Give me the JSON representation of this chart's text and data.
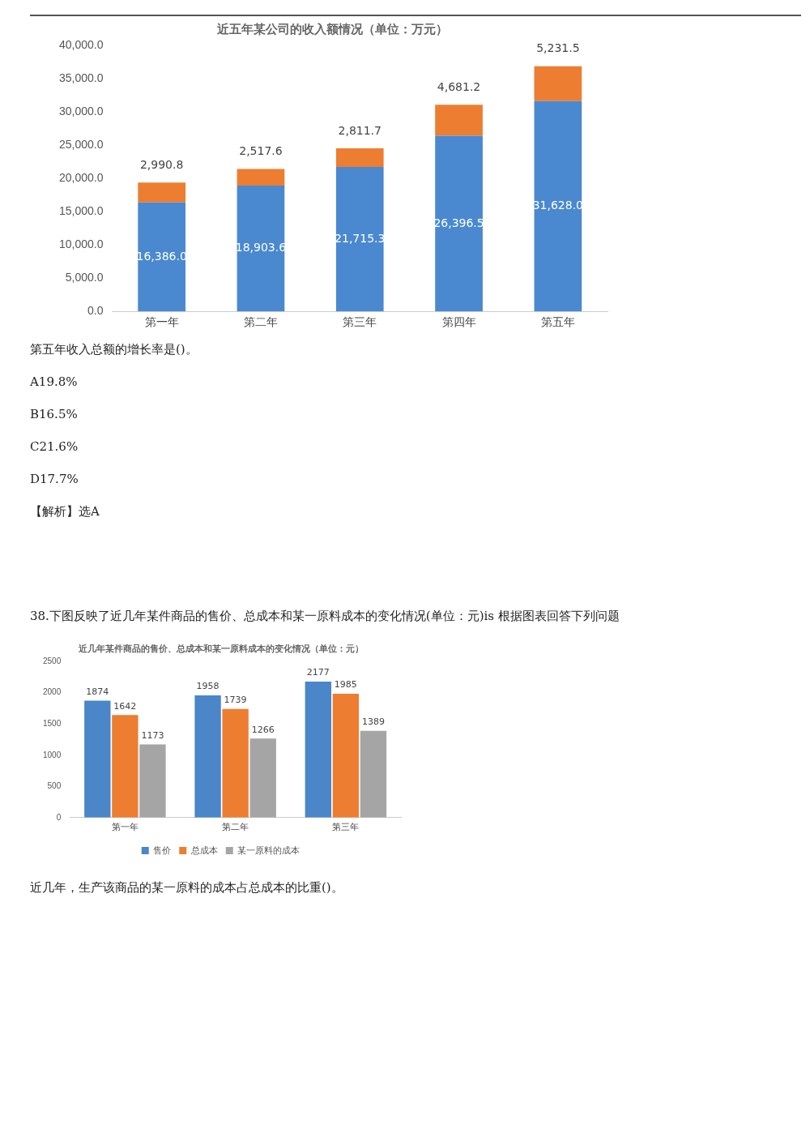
{
  "chart_data": [
    {
      "type": "bar",
      "stacked": true,
      "title": "近五年某公司的收入额情况（单位：万元）",
      "categories": [
        "第一年",
        "第二年",
        "第三年",
        "第四年",
        "第五年"
      ],
      "series": [
        {
          "color": "#4a89d0",
          "values": [
            16386.0,
            18903.6,
            21715.3,
            26396.5,
            31628.0
          ],
          "value_labels": [
            "16,386.0",
            "18,903.6",
            "21,715.3",
            "26,396.5",
            "31,628.0"
          ]
        },
        {
          "color": "#ed7d31",
          "values": [
            2990.8,
            2517.6,
            2811.7,
            4681.2,
            5231.5
          ],
          "value_labels": [
            "2,990.8",
            "2,517.6",
            "2,811.7",
            "4,681.2",
            "5,231.5"
          ]
        }
      ],
      "ylim": [
        0,
        40000
      ],
      "yticks": [
        {
          "value": 0,
          "label": "0.0"
        },
        {
          "value": 5000,
          "label": "5,000.0"
        },
        {
          "value": 10000,
          "label": "10,000.0"
        },
        {
          "value": 15000,
          "label": "15,000.0"
        },
        {
          "value": 20000,
          "label": "20,000.0"
        },
        {
          "value": 25000,
          "label": "25,000.0"
        },
        {
          "value": 30000,
          "label": "30,000.0"
        },
        {
          "value": 35000,
          "label": "35,000.0"
        },
        {
          "value": 40000,
          "label": "40,000.0"
        }
      ],
      "annotations": [
        "第五年收入总额的增长率是()。",
        "A19.8%",
        "B16.5%",
        "C21.6%",
        "D17.7%",
        "【解析】选A"
      ]
    },
    {
      "type": "bar",
      "title": "近几年某件商品的售价、总成本和某一原料成本的变化情况（单位：元）",
      "categories": [
        "第一年",
        "第二年",
        "第三年"
      ],
      "series": [
        {
          "name": "售价",
          "color": "#4a86c8",
          "values": [
            1874,
            1958,
            2177
          ]
        },
        {
          "name": "总成本",
          "color": "#ed7d31",
          "values": [
            1642,
            1739,
            1985
          ]
        },
        {
          "name": "某一原料的成本",
          "color": "#a5a5a5",
          "values": [
            1173,
            1266,
            1389
          ]
        }
      ],
      "data_labels": true,
      "legend": "bottom",
      "ylim": [
        0,
        2500
      ],
      "yticks": [
        0,
        500,
        1000,
        1500,
        2000,
        2500
      ],
      "annotations": [
        "38.下图反映了近几年某件商品的售价、总成本和某一原料成本的变化情况(单位：元)is 根据图表回答下列问题",
        "近几年，生产该商品的某一原料的成本占总成本的比重()。"
      ]
    }
  ]
}
